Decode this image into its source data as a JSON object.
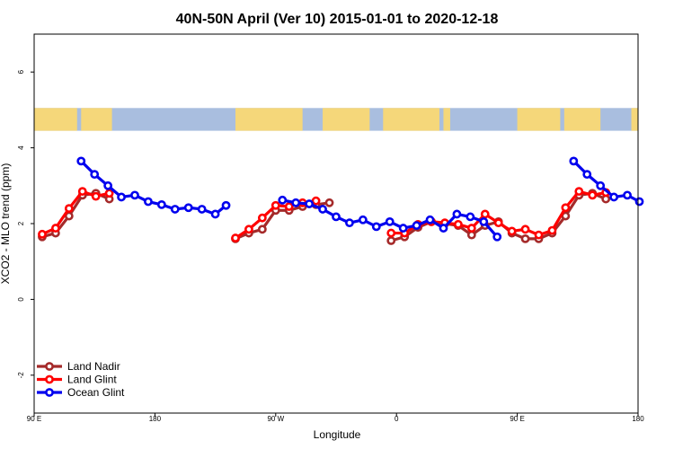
{
  "chart_data": {
    "type": "line",
    "title": "40N-50N April (Ver 10)   2015-01-01 to 2020-12-18",
    "xlabel": "Longitude",
    "ylabel": "XCO2 - MLO trend (ppm)",
    "xlim": [
      90,
      540
    ],
    "ylim": [
      -3,
      7
    ],
    "xticks": [
      {
        "value": 90,
        "label": "90 E"
      },
      {
        "value": 180,
        "label": "180"
      },
      {
        "value": 270,
        "label": "90 W"
      },
      {
        "value": 360,
        "label": "0"
      },
      {
        "value": 450,
        "label": "90 E"
      },
      {
        "value": 540,
        "label": "180"
      }
    ],
    "yticks": [
      {
        "value": -2,
        "label": "-2"
      },
      {
        "value": 0,
        "label": "0"
      },
      {
        "value": 2,
        "label": "2"
      },
      {
        "value": 4,
        "label": "4"
      },
      {
        "value": 6,
        "label": "6"
      }
    ],
    "map_strip": {
      "y_range": [
        4.45,
        5.05
      ],
      "land_color": "#f5d77a",
      "ocean_color": "#a9bedf"
    },
    "legend_position": "bottom-left",
    "series": [
      {
        "name": "Land Nadir",
        "color": "#a52a2a",
        "segments": [
          [
            [
              96,
              1.65
            ],
            [
              106,
              1.75
            ],
            [
              116,
              2.2
            ],
            [
              126,
              2.75
            ],
            [
              136,
              2.8
            ],
            [
              146,
              2.65
            ]
          ],
          [
            [
              240,
              1.6
            ],
            [
              250,
              1.75
            ],
            [
              260,
              1.85
            ],
            [
              270,
              2.35
            ],
            [
              280,
              2.35
            ],
            [
              290,
              2.45
            ],
            [
              300,
              2.5
            ],
            [
              310,
              2.55
            ]
          ],
          [
            [
              356,
              1.55
            ],
            [
              366,
              1.65
            ],
            [
              376,
              1.9
            ],
            [
              386,
              2.05
            ],
            [
              396,
              2.0
            ],
            [
              406,
              1.95
            ],
            [
              416,
              1.7
            ],
            [
              426,
              1.95
            ],
            [
              436,
              2.05
            ],
            [
              446,
              1.75
            ],
            [
              456,
              1.6
            ],
            [
              466,
              1.6
            ],
            [
              476,
              1.75
            ],
            [
              486,
              2.2
            ],
            [
              496,
              2.75
            ],
            [
              506,
              2.8
            ],
            [
              516,
              2.65
            ]
          ]
        ]
      },
      {
        "name": "Land Glint",
        "color": "#ff0000",
        "segments": [
          [
            [
              96,
              1.72
            ],
            [
              106,
              1.88
            ],
            [
              116,
              2.4
            ],
            [
              126,
              2.85
            ],
            [
              136,
              2.72
            ],
            [
              146,
              2.8
            ]
          ],
          [
            [
              240,
              1.62
            ],
            [
              250,
              1.85
            ],
            [
              260,
              2.15
            ],
            [
              270,
              2.48
            ],
            [
              280,
              2.45
            ],
            [
              290,
              2.55
            ],
            [
              300,
              2.6
            ]
          ],
          [
            [
              356,
              1.75
            ],
            [
              366,
              1.75
            ],
            [
              376,
              1.98
            ],
            [
              386,
              2.05
            ],
            [
              396,
              2.02
            ],
            [
              406,
              1.98
            ],
            [
              416,
              1.88
            ],
            [
              426,
              2.25
            ],
            [
              436,
              2.02
            ],
            [
              446,
              1.8
            ],
            [
              456,
              1.85
            ],
            [
              466,
              1.7
            ],
            [
              476,
              1.82
            ],
            [
              486,
              2.42
            ],
            [
              496,
              2.85
            ],
            [
              506,
              2.75
            ],
            [
              516,
              2.82
            ]
          ]
        ]
      },
      {
        "name": "Ocean Glint",
        "color": "#0000ee",
        "segments": [
          [
            [
              125,
              3.65
            ],
            [
              135,
              3.3
            ],
            [
              145,
              3.0
            ],
            [
              155,
              2.7
            ],
            [
              165,
              2.75
            ],
            [
              175,
              2.58
            ],
            [
              185,
              2.5
            ],
            [
              195,
              2.38
            ],
            [
              205,
              2.42
            ],
            [
              215,
              2.38
            ],
            [
              225,
              2.25
            ],
            [
              233,
              2.48
            ]
          ],
          [
            [
              275,
              2.62
            ],
            [
              285,
              2.55
            ],
            [
              295,
              2.52
            ],
            [
              305,
              2.38
            ],
            [
              315,
              2.18
            ],
            [
              325,
              2.02
            ],
            [
              335,
              2.1
            ],
            [
              345,
              1.92
            ],
            [
              355,
              2.05
            ],
            [
              365,
              1.88
            ],
            [
              375,
              1.95
            ],
            [
              385,
              2.1
            ],
            [
              395,
              1.88
            ],
            [
              405,
              2.25
            ],
            [
              415,
              2.18
            ],
            [
              425,
              2.05
            ],
            [
              435,
              1.65
            ]
          ],
          [
            [
              492,
              3.65
            ],
            [
              502,
              3.3
            ],
            [
              512,
              3.0
            ],
            [
              522,
              2.7
            ],
            [
              532,
              2.75
            ],
            [
              541,
              2.58
            ]
          ]
        ]
      }
    ]
  }
}
